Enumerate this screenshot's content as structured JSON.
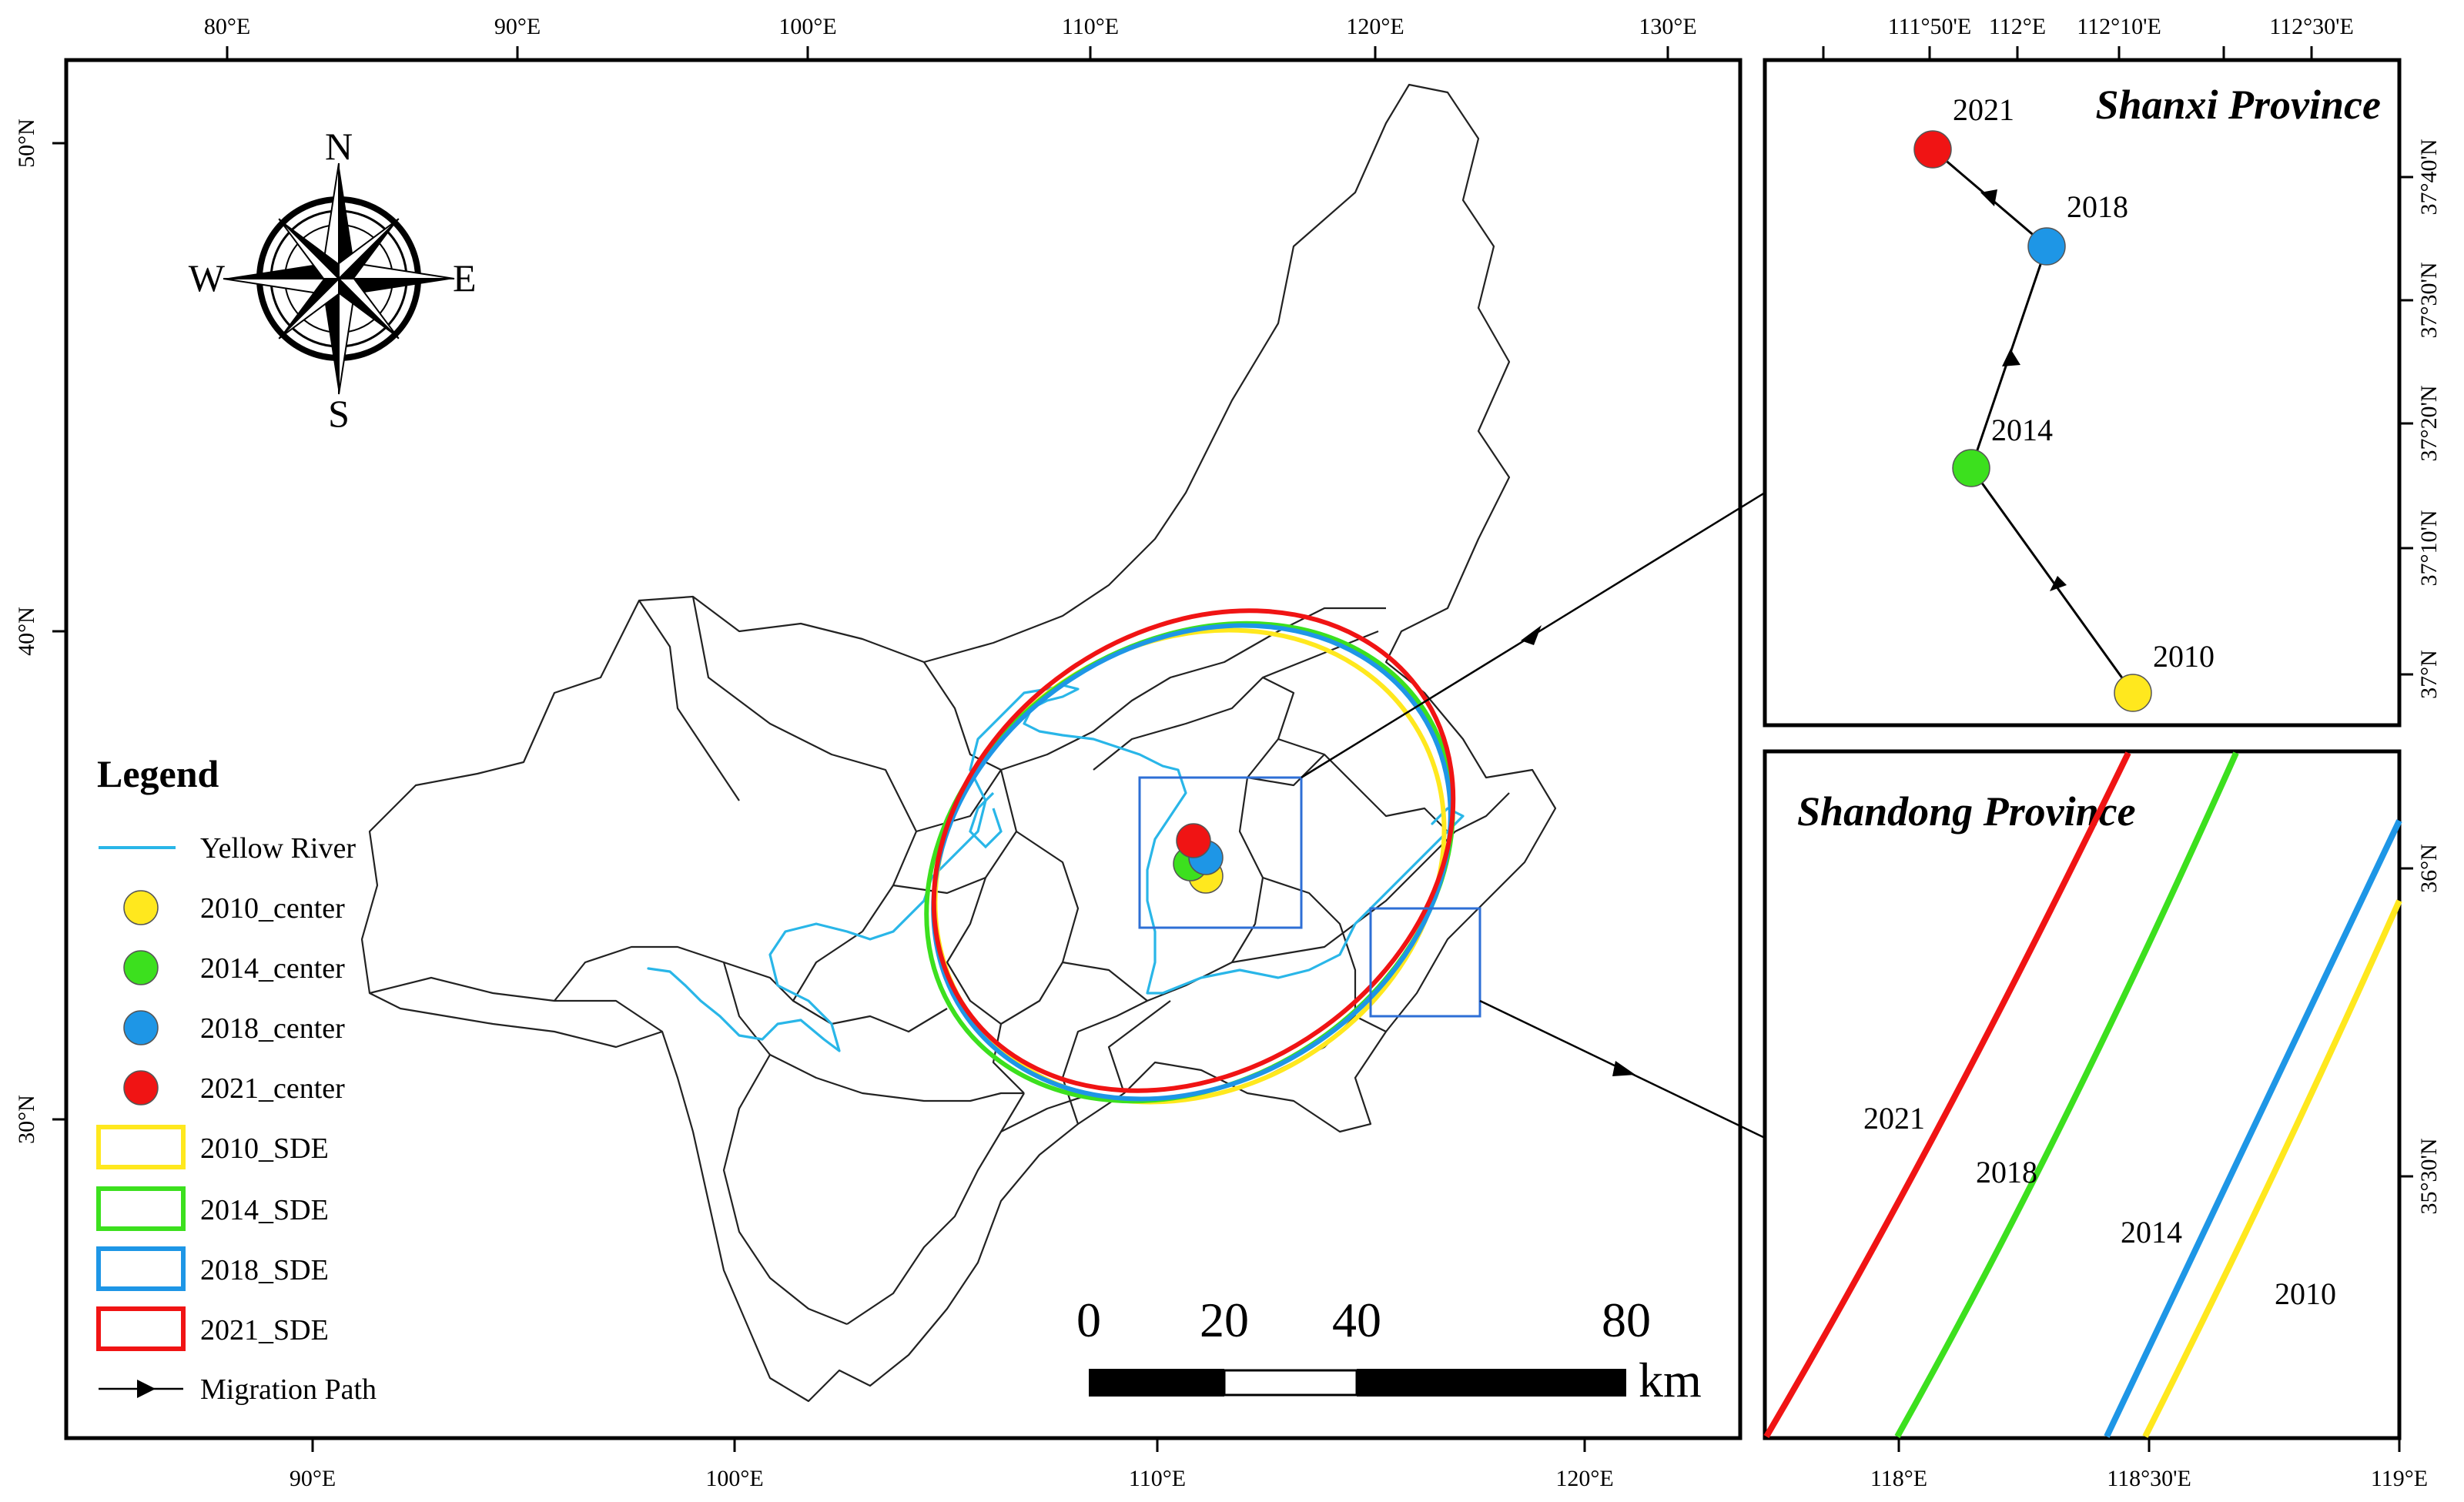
{
  "main_map": {
    "top_lon_labels": [
      "80°E",
      "90°E",
      "100°E",
      "110°E",
      "120°E",
      "130°E"
    ],
    "bottom_lon_labels": [
      "90°E",
      "100°E",
      "110°E",
      "120°E"
    ],
    "left_lat_labels": [
      "50°N",
      "40°N",
      "30°N"
    ]
  },
  "compass": {
    "n": "N",
    "s": "S",
    "e": "E",
    "w": "W"
  },
  "legend": {
    "title": "Legend",
    "items": [
      {
        "label": "Yellow River",
        "kind": "river",
        "color": "#29B6E8"
      },
      {
        "label": "2010_center",
        "kind": "dot",
        "color": "#FFE81E"
      },
      {
        "label": "2014_center",
        "kind": "dot",
        "color": "#3CE01E"
      },
      {
        "label": "2018_center",
        "kind": "dot",
        "color": "#1E96E6"
      },
      {
        "label": "2021_center",
        "kind": "dot",
        "color": "#F01414"
      },
      {
        "label": "2010_SDE",
        "kind": "box",
        "color": "#FFE81E"
      },
      {
        "label": "2014_SDE",
        "kind": "box",
        "color": "#3CE01E"
      },
      {
        "label": "2018_SDE",
        "kind": "box",
        "color": "#1E96E6"
      },
      {
        "label": "2021_SDE",
        "kind": "box",
        "color": "#F01414"
      },
      {
        "label": "Migration Path",
        "kind": "arrow",
        "color": "#000000"
      }
    ]
  },
  "scale_bar": {
    "ticks": [
      "0",
      "20",
      "40",
      "80"
    ],
    "unit": "km"
  },
  "inset_shanxi": {
    "title": "Shanxi Province",
    "top_labels": [
      "111°50'E",
      "112°E",
      "112°10'E",
      "112°30'E"
    ],
    "right_labels": [
      "37°40'N",
      "37°30'N",
      "37°20'N",
      "37°10'N",
      "37°N"
    ],
    "points": [
      {
        "year": "2021",
        "color": "#F01414"
      },
      {
        "year": "2018",
        "color": "#1E96E6"
      },
      {
        "year": "2014",
        "color": "#3CE01E"
      },
      {
        "year": "2010",
        "color": "#FFE81E"
      }
    ]
  },
  "inset_shandong": {
    "title": "Shandong Province",
    "bottom_labels": [
      "118°E",
      "118°30'E",
      "119°E"
    ],
    "right_labels": [
      "36°N",
      "35°30'N"
    ],
    "curve_labels": [
      "2021",
      "2018",
      "2014",
      "2010"
    ]
  },
  "colors": {
    "river": "#29B6E8",
    "y2010": "#FFE81E",
    "y2014": "#3CE01E",
    "y2018": "#1E96E6",
    "y2021": "#F01414",
    "boundary": "#222222",
    "zoom_box": "#2E6FD6"
  }
}
